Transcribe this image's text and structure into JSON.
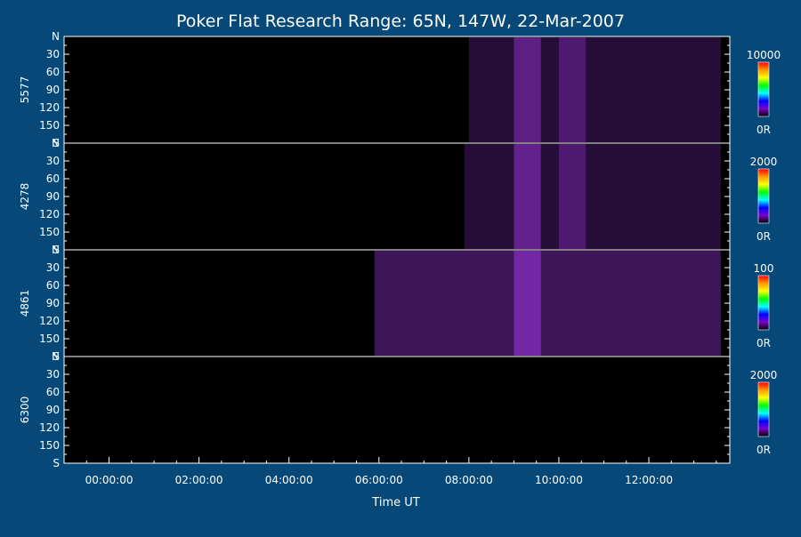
{
  "chart_data": {
    "type": "heatmap",
    "title": "Poker Flat Research Range: 65N, 147W, 22-Mar-2007",
    "xlabel": "Time UT",
    "x_tick_labels": [
      "00:00:00",
      "02:00:00",
      "04:00:00",
      "06:00:00",
      "08:00:00",
      "10:00:00",
      "12:00:00"
    ],
    "x_tick_hours": [
      0,
      2,
      4,
      6,
      8,
      10,
      12
    ],
    "xlim_hours": [
      -1.0,
      13.8
    ],
    "y_tick_labels": [
      "N",
      "30",
      "60",
      "90",
      "120",
      "150",
      "S"
    ],
    "y_tick_values": [
      0,
      30,
      60,
      90,
      120,
      150,
      180
    ],
    "ylim": [
      0,
      180
    ],
    "panels": [
      {
        "name": "5577",
        "colorbar": {
          "max_label": "10000",
          "min_label": "0R"
        },
        "emission": [
          {
            "start_hour": 8.0,
            "end_hour": 13.6,
            "level": 0.28
          },
          {
            "start_hour": 9.0,
            "end_hour": 9.6,
            "level": 0.55
          },
          {
            "start_hour": 10.0,
            "end_hour": 10.6,
            "level": 0.4
          }
        ]
      },
      {
        "name": "4278",
        "colorbar": {
          "max_label": "2000",
          "min_label": "0R"
        },
        "emission": [
          {
            "start_hour": 7.9,
            "end_hour": 13.6,
            "level": 0.28
          },
          {
            "start_hour": 9.0,
            "end_hour": 9.6,
            "level": 0.6
          },
          {
            "start_hour": 10.0,
            "end_hour": 10.6,
            "level": 0.4
          }
        ]
      },
      {
        "name": "4861",
        "colorbar": {
          "max_label": "100",
          "min_label": "0R"
        },
        "emission": [
          {
            "start_hour": 5.9,
            "end_hour": 13.6,
            "level": 0.45
          },
          {
            "start_hour": 9.0,
            "end_hour": 9.6,
            "level": 0.7
          }
        ]
      },
      {
        "name": "6300",
        "colorbar": {
          "max_label": "2000",
          "min_label": "0R"
        },
        "emission": []
      }
    ],
    "colors": {
      "background": "#064877",
      "plot_background": "#000000",
      "emission": "#8a2fc4",
      "axis": "#ffffff",
      "colorbar_stops": [
        "#ff0000",
        "#ff9900",
        "#ffff00",
        "#00ff00",
        "#00ffff",
        "#0000ff",
        "#7a00c8",
        "#000000"
      ]
    }
  }
}
